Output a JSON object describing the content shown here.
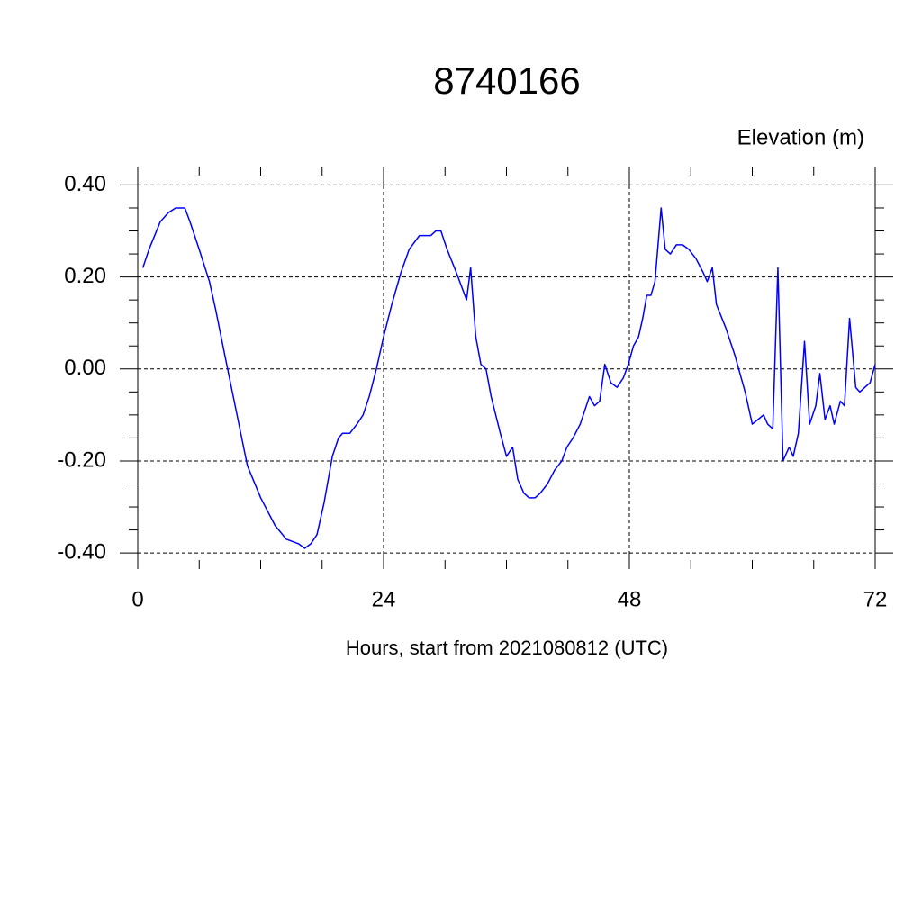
{
  "chart_data": {
    "type": "line",
    "title": "8740166",
    "ylabel": "Elevation (m)",
    "xlabel": "Hours, start from 2021080812 (UTC)",
    "color": "#0000ff",
    "grid": true,
    "xlim": [
      0,
      72
    ],
    "xticks": [
      0,
      24,
      48,
      72
    ],
    "ylim": [
      -0.435,
      0.44
    ],
    "yticks": [
      {
        "value": 0.4,
        "label": "0.40"
      },
      {
        "value": 0.2,
        "label": "0.20"
      },
      {
        "value": 0,
        "label": "0.00"
      },
      {
        "value": -0.2,
        "label": "-0.20"
      },
      {
        "value": -0.4,
        "label": "-0.40"
      }
    ],
    "x": [
      0.5,
      1.1,
      2.2,
      3.0,
      3.7,
      4.1,
      4.6,
      5.1,
      6.0,
      7.0,
      7.6,
      8.5,
      9.6,
      10.7,
      12.0,
      13.4,
      14.5,
      15.7,
      16.3,
      16.9,
      17.5,
      18.2,
      19.0,
      19.6,
      20.0,
      20.7,
      21.4,
      22.0,
      22.6,
      23.3,
      24.0,
      24.8,
      25.7,
      26.5,
      27.5,
      27.9,
      28.6,
      29.1,
      29.6,
      30.2,
      31.1,
      32.1,
      32.5,
      33.0,
      33.5,
      34.0,
      34.5,
      35.4,
      36.0,
      36.6,
      37.1,
      37.7,
      38.2,
      38.8,
      39.3,
      40.0,
      40.7,
      41.4,
      41.9,
      42.5,
      43.2,
      44.1,
      44.6,
      45.1,
      45.6,
      46.2,
      46.8,
      47.4,
      47.9,
      48.4,
      48.9,
      49.3,
      49.7,
      50.1,
      50.5,
      51.1,
      51.5,
      52.0,
      52.6,
      53.2,
      53.8,
      54.5,
      55.2,
      55.6,
      56.1,
      56.5,
      57.4,
      58.3,
      59.3,
      60.0,
      61.1,
      61.5,
      62.0,
      62.5,
      63.0,
      63.6,
      64.0,
      64.5,
      65.1,
      65.6,
      66.2,
      66.6,
      67.1,
      67.6,
      68.0,
      68.6,
      69.0,
      69.5,
      70.1,
      70.5,
      71.0,
      71.5,
      72.0
    ],
    "values": [
      0.22,
      0.26,
      0.32,
      0.34,
      0.35,
      0.35,
      0.35,
      0.32,
      0.26,
      0.19,
      0.13,
      0.03,
      -0.09,
      -0.21,
      -0.28,
      -0.34,
      -0.37,
      -0.38,
      -0.39,
      -0.38,
      -0.36,
      -0.29,
      -0.19,
      -0.15,
      -0.14,
      -0.14,
      -0.12,
      -0.1,
      -0.06,
      0.0,
      0.07,
      0.14,
      0.21,
      0.26,
      0.29,
      0.29,
      0.29,
      0.3,
      0.3,
      0.26,
      0.21,
      0.15,
      0.22,
      0.07,
      0.01,
      0.0,
      -0.06,
      -0.14,
      -0.19,
      -0.17,
      -0.24,
      -0.27,
      -0.28,
      -0.28,
      -0.27,
      -0.25,
      -0.22,
      -0.2,
      -0.17,
      -0.15,
      -0.12,
      -0.06,
      -0.08,
      -0.07,
      0.01,
      -0.03,
      -0.04,
      -0.02,
      0.01,
      0.05,
      0.07,
      0.11,
      0.16,
      0.16,
      0.19,
      0.35,
      0.26,
      0.25,
      0.27,
      0.27,
      0.26,
      0.24,
      0.21,
      0.19,
      0.22,
      0.14,
      0.09,
      0.03,
      -0.05,
      -0.12,
      -0.1,
      -0.12,
      -0.13,
      0.22,
      -0.2,
      -0.17,
      -0.19,
      -0.14,
      0.06,
      -0.12,
      -0.08,
      -0.01,
      -0.11,
      -0.08,
      -0.12,
      -0.07,
      -0.08,
      0.11,
      -0.04,
      -0.05,
      -0.04,
      -0.03,
      0.01
    ]
  }
}
